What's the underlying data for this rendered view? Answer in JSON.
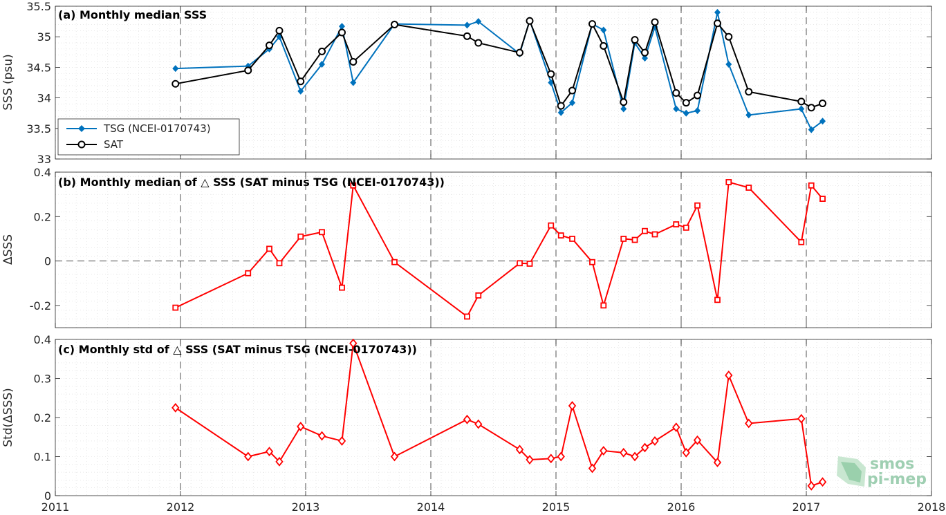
{
  "colors": {
    "tsg": "#0072BD",
    "sat": "#000000",
    "delta": "#FF0000",
    "grid": "#dcdcdc",
    "frame": "#262626"
  },
  "xaxis": {
    "min": 2011,
    "max": 2018,
    "ticks": [
      2011,
      2012,
      2013,
      2014,
      2015,
      2016,
      2017,
      2018
    ],
    "tick_labels": [
      "2011",
      "2012",
      "2013",
      "2014",
      "2015",
      "2016",
      "2017",
      "2018"
    ]
  },
  "logo": {
    "line1": "smos",
    "line2": "pi-mep"
  },
  "chart_data": [
    {
      "type": "line",
      "title": "(a) Monthly median SSS",
      "ylabel": "SSS (psu)",
      "ylim": [
        33,
        35.5
      ],
      "yticks": [
        33,
        33.5,
        34,
        34.5,
        35,
        35.5
      ],
      "ytick_labels": [
        "33",
        "33.5",
        "34",
        "34.5",
        "35",
        "35.5"
      ],
      "grid": true,
      "legend_position": "bottom-left",
      "series": [
        {
          "name": "TSG (NCEI-0170743)",
          "marker": "diamond",
          "color": "#0072BD",
          "x": [
            2011.96,
            2012.54,
            2012.71,
            2012.79,
            2012.96,
            2013.13,
            2013.29,
            2013.38,
            2013.71,
            2014.29,
            2014.38,
            2014.71,
            2014.79,
            2014.96,
            2015.04,
            2015.13,
            2015.29,
            2015.38,
            2015.54,
            2015.63,
            2015.71,
            2015.79,
            2015.96,
            2016.04,
            2016.13,
            2016.29,
            2016.38,
            2016.54,
            2016.96,
            2017.04,
            2017.13
          ],
          "y": [
            34.48,
            34.52,
            34.8,
            35.0,
            34.11,
            34.55,
            35.17,
            34.25,
            35.21,
            35.19,
            35.25,
            34.72,
            35.27,
            34.25,
            33.76,
            33.92,
            35.21,
            35.11,
            33.82,
            34.9,
            34.65,
            35.16,
            33.82,
            33.75,
            33.79,
            35.4,
            34.55,
            33.72,
            33.82,
            33.48,
            33.62
          ]
        },
        {
          "name": "SAT",
          "marker": "circle",
          "color": "#000000",
          "x": [
            2011.96,
            2012.54,
            2012.71,
            2012.79,
            2012.96,
            2013.13,
            2013.29,
            2013.38,
            2013.71,
            2014.29,
            2014.38,
            2014.71,
            2014.79,
            2014.96,
            2015.04,
            2015.13,
            2015.29,
            2015.38,
            2015.54,
            2015.63,
            2015.71,
            2015.79,
            2015.96,
            2016.04,
            2016.13,
            2016.29,
            2016.38,
            2016.54,
            2016.96,
            2017.04,
            2017.13
          ],
          "y": [
            34.23,
            34.45,
            34.86,
            35.1,
            34.27,
            34.76,
            35.07,
            34.59,
            35.2,
            35.01,
            34.9,
            34.74,
            35.26,
            34.39,
            33.87,
            34.12,
            35.21,
            34.85,
            33.93,
            34.95,
            34.74,
            35.24,
            34.08,
            33.92,
            34.04,
            35.22,
            35.0,
            34.1,
            33.94,
            33.84,
            33.91
          ]
        }
      ]
    },
    {
      "type": "line",
      "title": "(b) Monthly median of △ SSS (SAT minus TSG (NCEI-0170743))",
      "ylabel": "ΔSSS",
      "ylim": [
        -0.3,
        0.4
      ],
      "yticks": [
        -0.2,
        0,
        0.2,
        0.4
      ],
      "ytick_labels": [
        "-0.2",
        "0",
        "0.2",
        "0.4"
      ],
      "grid": true,
      "zero_line": true,
      "series": [
        {
          "marker": "square",
          "color": "#FF0000",
          "x": [
            2011.96,
            2012.54,
            2012.71,
            2012.79,
            2012.96,
            2013.13,
            2013.29,
            2013.38,
            2013.71,
            2014.29,
            2014.38,
            2014.71,
            2014.79,
            2014.96,
            2015.04,
            2015.13,
            2015.29,
            2015.38,
            2015.54,
            2015.63,
            2015.71,
            2015.79,
            2015.96,
            2016.04,
            2016.13,
            2016.29,
            2016.38,
            2016.54,
            2016.96,
            2017.04,
            2017.13
          ],
          "y": [
            -0.21,
            -0.055,
            0.055,
            -0.01,
            0.11,
            0.13,
            -0.12,
            0.34,
            -0.005,
            -0.25,
            -0.155,
            -0.01,
            -0.012,
            0.16,
            0.115,
            0.1,
            -0.005,
            -0.2,
            0.1,
            0.095,
            0.135,
            0.12,
            0.165,
            0.15,
            0.25,
            -0.175,
            0.355,
            0.33,
            0.085,
            0.34,
            0.28
          ]
        }
      ]
    },
    {
      "type": "line",
      "title": "(c) Monthly std of △ SSS (SAT minus TSG (NCEI-0170743))",
      "ylabel": "Std(ΔSSS)",
      "ylim": [
        0,
        0.4
      ],
      "yticks": [
        0,
        0.1,
        0.2,
        0.3,
        0.4
      ],
      "ytick_labels": [
        "0",
        "0.1",
        "0.2",
        "0.3",
        "0.4"
      ],
      "grid": true,
      "series": [
        {
          "marker": "diamond-open",
          "color": "#FF0000",
          "x": [
            2011.96,
            2012.54,
            2012.71,
            2012.79,
            2012.96,
            2013.13,
            2013.29,
            2013.38,
            2013.71,
            2014.29,
            2014.38,
            2014.71,
            2014.79,
            2014.96,
            2015.04,
            2015.13,
            2015.29,
            2015.38,
            2015.54,
            2015.63,
            2015.71,
            2015.79,
            2015.96,
            2016.04,
            2016.13,
            2016.29,
            2016.38,
            2016.54,
            2016.96,
            2017.04,
            2017.13
          ],
          "y": [
            0.225,
            0.1,
            0.113,
            0.087,
            0.177,
            0.153,
            0.14,
            0.39,
            0.1,
            0.195,
            0.183,
            0.118,
            0.092,
            0.095,
            0.1,
            0.23,
            0.07,
            0.115,
            0.11,
            0.1,
            0.123,
            0.14,
            0.175,
            0.11,
            0.142,
            0.085,
            0.308,
            0.185,
            0.197,
            0.025,
            0.035
          ]
        }
      ]
    }
  ]
}
